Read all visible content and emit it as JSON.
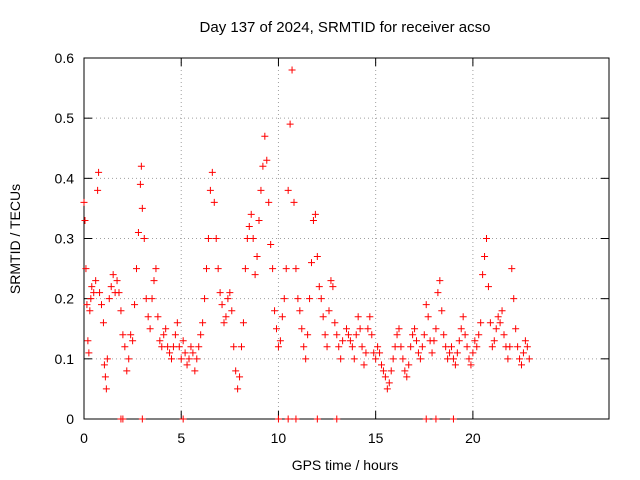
{
  "chart_data": {
    "type": "scatter",
    "title": "Day 137 of 2024, SRMTID for receiver acso",
    "xlabel": "GPS time / hours",
    "ylabel": "SRMTID / TECUs",
    "xlim": [
      0,
      27
    ],
    "ylim": [
      0,
      0.6
    ],
    "xticks": [
      0,
      5,
      10,
      15,
      20
    ],
    "yticks": [
      0,
      0.1,
      0.2,
      0.3,
      0.4,
      0.5,
      0.6
    ],
    "xtick_labels": [
      "0",
      "5",
      "10",
      "15",
      "20"
    ],
    "ytick_labels": [
      "0",
      "0.1",
      "0.2",
      "0.3",
      "0.4",
      "0.5",
      "0.6"
    ],
    "grid": true,
    "marker": "+",
    "color": "#ff0000",
    "series": [
      {
        "name": "acso",
        "points": [
          [
            0.0,
            0.36
          ],
          [
            0.05,
            0.33
          ],
          [
            0.1,
            0.25
          ],
          [
            0.15,
            0.19
          ],
          [
            0.2,
            0.13
          ],
          [
            0.25,
            0.11
          ],
          [
            0.3,
            0.18
          ],
          [
            0.35,
            0.2
          ],
          [
            0.4,
            0.22
          ],
          [
            0.5,
            0.21
          ],
          [
            0.6,
            0.23
          ],
          [
            0.7,
            0.38
          ],
          [
            0.75,
            0.41
          ],
          [
            0.8,
            0.21
          ],
          [
            0.9,
            0.19
          ],
          [
            1.0,
            0.16
          ],
          [
            1.05,
            0.09
          ],
          [
            1.1,
            0.07
          ],
          [
            1.15,
            0.05
          ],
          [
            1.2,
            0.1
          ],
          [
            1.3,
            0.2
          ],
          [
            1.4,
            0.22
          ],
          [
            1.5,
            0.24
          ],
          [
            1.6,
            0.21
          ],
          [
            1.7,
            0.23
          ],
          [
            1.8,
            0.21
          ],
          [
            1.9,
            0.18
          ],
          [
            2.0,
            0.14
          ],
          [
            2.1,
            0.12
          ],
          [
            2.2,
            0.08
          ],
          [
            2.3,
            0.1
          ],
          [
            2.4,
            0.14
          ],
          [
            2.5,
            0.13
          ],
          [
            2.6,
            0.19
          ],
          [
            2.7,
            0.25
          ],
          [
            2.8,
            0.31
          ],
          [
            2.9,
            0.39
          ],
          [
            2.95,
            0.42
          ],
          [
            3.0,
            0.35
          ],
          [
            3.1,
            0.3
          ],
          [
            3.2,
            0.2
          ],
          [
            3.3,
            0.17
          ],
          [
            3.4,
            0.15
          ],
          [
            3.5,
            0.2
          ],
          [
            3.6,
            0.23
          ],
          [
            3.7,
            0.25
          ],
          [
            3.8,
            0.17
          ],
          [
            3.9,
            0.13
          ],
          [
            4.0,
            0.12
          ],
          [
            4.1,
            0.14
          ],
          [
            4.2,
            0.15
          ],
          [
            4.3,
            0.12
          ],
          [
            4.4,
            0.11
          ],
          [
            4.5,
            0.1
          ],
          [
            4.6,
            0.12
          ],
          [
            4.7,
            0.14
          ],
          [
            4.8,
            0.16
          ],
          [
            4.9,
            0.12
          ],
          [
            5.0,
            0.1
          ],
          [
            5.1,
            0.13
          ],
          [
            5.2,
            0.11
          ],
          [
            5.3,
            0.09
          ],
          [
            5.4,
            0.1
          ],
          [
            5.5,
            0.12
          ],
          [
            5.6,
            0.11
          ],
          [
            5.7,
            0.08
          ],
          [
            5.8,
            0.1
          ],
          [
            5.9,
            0.12
          ],
          [
            6.0,
            0.14
          ],
          [
            6.1,
            0.16
          ],
          [
            6.2,
            0.2
          ],
          [
            6.3,
            0.25
          ],
          [
            6.4,
            0.3
          ],
          [
            6.5,
            0.38
          ],
          [
            6.6,
            0.41
          ],
          [
            6.7,
            0.36
          ],
          [
            6.8,
            0.3
          ],
          [
            6.9,
            0.25
          ],
          [
            7.0,
            0.21
          ],
          [
            7.1,
            0.19
          ],
          [
            7.2,
            0.16
          ],
          [
            7.3,
            0.17
          ],
          [
            7.4,
            0.2
          ],
          [
            7.5,
            0.21
          ],
          [
            7.6,
            0.18
          ],
          [
            7.7,
            0.12
          ],
          [
            7.8,
            0.08
          ],
          [
            7.9,
            0.05
          ],
          [
            8.0,
            0.07
          ],
          [
            8.1,
            0.12
          ],
          [
            8.2,
            0.16
          ],
          [
            8.3,
            0.25
          ],
          [
            8.4,
            0.3
          ],
          [
            8.5,
            0.32
          ],
          [
            8.6,
            0.34
          ],
          [
            8.7,
            0.3
          ],
          [
            8.8,
            0.24
          ],
          [
            8.9,
            0.27
          ],
          [
            9.0,
            0.33
          ],
          [
            9.1,
            0.38
          ],
          [
            9.2,
            0.42
          ],
          [
            9.3,
            0.47
          ],
          [
            9.4,
            0.43
          ],
          [
            9.5,
            0.36
          ],
          [
            9.6,
            0.29
          ],
          [
            9.7,
            0.25
          ],
          [
            9.8,
            0.18
          ],
          [
            9.9,
            0.15
          ],
          [
            10.0,
            0.12
          ],
          [
            10.1,
            0.13
          ],
          [
            10.2,
            0.17
          ],
          [
            10.3,
            0.2
          ],
          [
            10.4,
            0.25
          ],
          [
            10.5,
            0.38
          ],
          [
            10.6,
            0.49
          ],
          [
            10.7,
            0.58
          ],
          [
            10.8,
            0.36
          ],
          [
            10.9,
            0.25
          ],
          [
            11.0,
            0.2
          ],
          [
            11.1,
            0.18
          ],
          [
            11.2,
            0.15
          ],
          [
            11.3,
            0.12
          ],
          [
            11.4,
            0.1
          ],
          [
            11.5,
            0.14
          ],
          [
            11.6,
            0.2
          ],
          [
            11.7,
            0.26
          ],
          [
            11.8,
            0.33
          ],
          [
            11.9,
            0.34
          ],
          [
            12.0,
            0.27
          ],
          [
            12.1,
            0.22
          ],
          [
            12.2,
            0.2
          ],
          [
            12.3,
            0.17
          ],
          [
            12.4,
            0.14
          ],
          [
            12.5,
            0.12
          ],
          [
            12.6,
            0.18
          ],
          [
            12.7,
            0.23
          ],
          [
            12.8,
            0.22
          ],
          [
            12.9,
            0.16
          ],
          [
            13.0,
            0.14
          ],
          [
            13.1,
            0.12
          ],
          [
            13.2,
            0.1
          ],
          [
            13.3,
            0.13
          ],
          [
            13.5,
            0.15
          ],
          [
            13.6,
            0.14
          ],
          [
            13.7,
            0.13
          ],
          [
            13.8,
            0.12
          ],
          [
            13.9,
            0.1
          ],
          [
            14.0,
            0.14
          ],
          [
            14.1,
            0.17
          ],
          [
            14.2,
            0.15
          ],
          [
            14.3,
            0.12
          ],
          [
            14.4,
            0.09
          ],
          [
            14.5,
            0.11
          ],
          [
            14.6,
            0.15
          ],
          [
            14.7,
            0.17
          ],
          [
            14.8,
            0.14
          ],
          [
            14.9,
            0.11
          ],
          [
            15.0,
            0.1
          ],
          [
            15.1,
            0.12
          ],
          [
            15.2,
            0.11
          ],
          [
            15.3,
            0.09
          ],
          [
            15.4,
            0.08
          ],
          [
            15.5,
            0.07
          ],
          [
            15.6,
            0.05
          ],
          [
            15.7,
            0.06
          ],
          [
            15.8,
            0.08
          ],
          [
            15.9,
            0.1
          ],
          [
            16.0,
            0.12
          ],
          [
            16.1,
            0.14
          ],
          [
            16.2,
            0.15
          ],
          [
            16.3,
            0.12
          ],
          [
            16.4,
            0.1
          ],
          [
            16.5,
            0.08
          ],
          [
            16.6,
            0.07
          ],
          [
            16.7,
            0.09
          ],
          [
            16.8,
            0.12
          ],
          [
            16.9,
            0.14
          ],
          [
            17.0,
            0.15
          ],
          [
            17.1,
            0.13
          ],
          [
            17.2,
            0.11
          ],
          [
            17.3,
            0.1
          ],
          [
            17.4,
            0.12
          ],
          [
            17.5,
            0.14
          ],
          [
            17.6,
            0.19
          ],
          [
            17.7,
            0.17
          ],
          [
            17.8,
            0.13
          ],
          [
            17.9,
            0.11
          ],
          [
            18.0,
            0.13
          ],
          [
            18.1,
            0.15
          ],
          [
            18.2,
            0.21
          ],
          [
            18.3,
            0.23
          ],
          [
            18.4,
            0.18
          ],
          [
            18.5,
            0.14
          ],
          [
            18.6,
            0.12
          ],
          [
            18.7,
            0.1
          ],
          [
            18.8,
            0.11
          ],
          [
            18.9,
            0.12
          ],
          [
            19.0,
            0.1
          ],
          [
            19.1,
            0.09
          ],
          [
            19.2,
            0.11
          ],
          [
            19.3,
            0.13
          ],
          [
            19.4,
            0.15
          ],
          [
            19.5,
            0.17
          ],
          [
            19.6,
            0.14
          ],
          [
            19.7,
            0.12
          ],
          [
            19.8,
            0.1
          ],
          [
            19.9,
            0.09
          ],
          [
            20.0,
            0.11
          ],
          [
            20.1,
            0.13
          ],
          [
            20.2,
            0.12
          ],
          [
            20.3,
            0.14
          ],
          [
            20.4,
            0.16
          ],
          [
            20.5,
            0.24
          ],
          [
            20.6,
            0.27
          ],
          [
            20.7,
            0.3
          ],
          [
            20.8,
            0.22
          ],
          [
            20.9,
            0.16
          ],
          [
            21.0,
            0.12
          ],
          [
            21.1,
            0.13
          ],
          [
            21.2,
            0.15
          ],
          [
            21.3,
            0.17
          ],
          [
            21.4,
            0.16
          ],
          [
            21.5,
            0.18
          ],
          [
            21.6,
            0.14
          ],
          [
            21.7,
            0.12
          ],
          [
            21.8,
            0.1
          ],
          [
            21.9,
            0.12
          ],
          [
            22.0,
            0.25
          ],
          [
            22.1,
            0.2
          ],
          [
            22.2,
            0.15
          ],
          [
            22.3,
            0.12
          ],
          [
            22.4,
            0.1
          ],
          [
            22.5,
            0.09
          ],
          [
            22.6,
            0.11
          ],
          [
            22.7,
            0.13
          ],
          [
            22.8,
            0.12
          ],
          [
            22.9,
            0.1
          ],
          [
            1.9,
            0.0
          ],
          [
            2.0,
            0.0
          ],
          [
            3.0,
            0.0
          ],
          [
            5.1,
            0.0
          ],
          [
            10.0,
            0.0
          ],
          [
            10.5,
            0.0
          ],
          [
            10.9,
            0.0
          ],
          [
            12.0,
            0.0
          ],
          [
            13.0,
            0.0
          ],
          [
            17.6,
            0.0
          ],
          [
            18.1,
            0.0
          ],
          [
            19.0,
            0.0
          ]
        ]
      }
    ]
  }
}
